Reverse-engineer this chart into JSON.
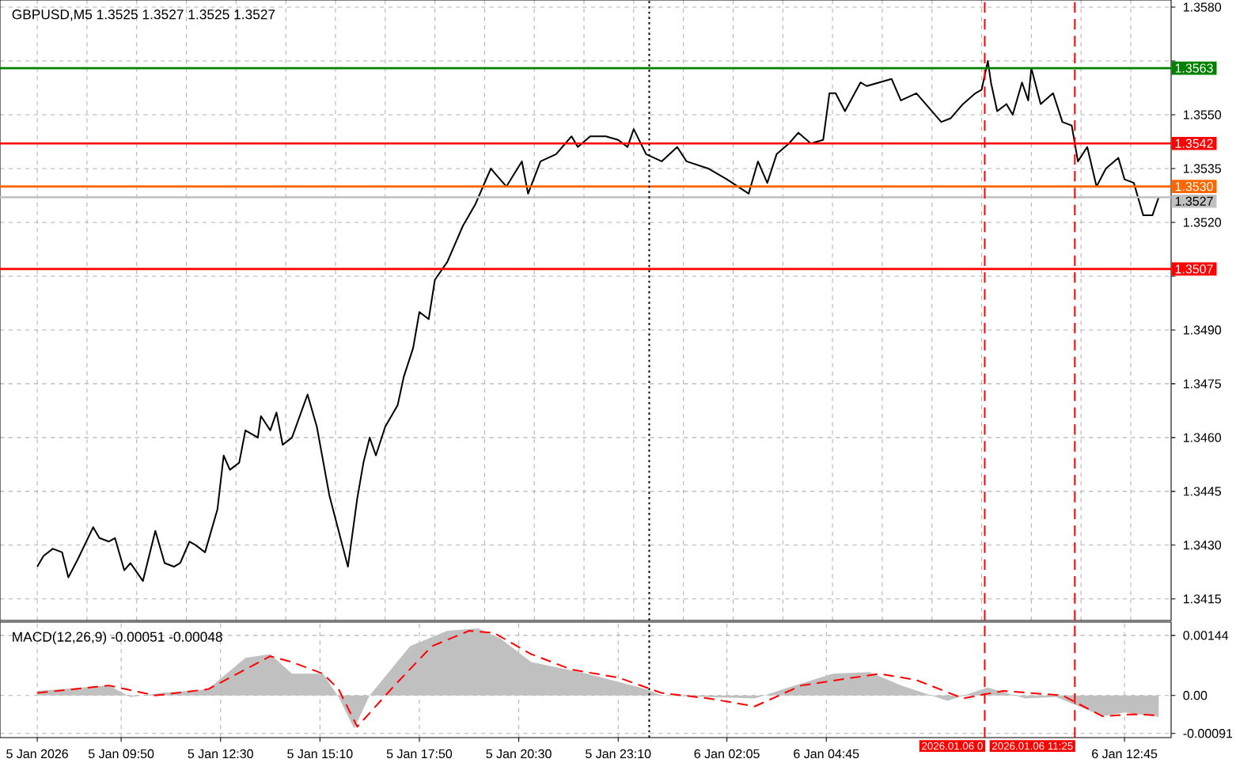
{
  "chart_data": [
    {
      "type": "line",
      "title": "GBPUSD,M5 1.3525 1.3527 1.3525 1.3527",
      "series": [
        {
          "color": "#000000",
          "x": [
            "2026-01-05T07:35",
            "2026-01-05T07:45",
            "2026-01-05T08:00",
            "2026-01-05T08:15",
            "2026-01-05T08:25",
            "2026-01-05T08:40",
            "2026-01-05T09:05",
            "2026-01-05T09:15",
            "2026-01-05T09:30",
            "2026-01-05T09:40",
            "2026-01-05T09:55",
            "2026-01-05T10:05",
            "2026-01-05T10:25",
            "2026-01-05T10:45",
            "2026-01-05T11:00",
            "2026-01-05T11:15",
            "2026-01-05T11:25",
            "2026-01-05T11:40",
            "2026-01-05T11:50",
            "2026-01-05T12:05",
            "2026-01-05T12:25",
            "2026-01-05T12:35",
            "2026-01-05T12:45",
            "2026-01-05T13:00",
            "2026-01-05T13:10",
            "2026-01-05T13:30",
            "2026-01-05T13:35",
            "2026-01-05T13:50",
            "2026-01-05T14:00",
            "2026-01-05T14:10",
            "2026-01-05T14:25",
            "2026-01-05T14:50",
            "2026-01-05T15:05",
            "2026-01-05T15:25",
            "2026-01-05T15:40",
            "2026-01-05T15:55",
            "2026-01-05T16:10",
            "2026-01-05T16:20",
            "2026-01-05T16:30",
            "2026-01-05T16:40",
            "2026-01-05T16:55",
            "2026-01-05T17:15",
            "2026-01-05T17:25",
            "2026-01-05T17:40",
            "2026-01-05T17:50",
            "2026-01-05T18:05",
            "2026-01-05T18:15",
            "2026-01-05T18:35",
            "2026-01-05T19:00",
            "2026-01-05T19:20",
            "2026-01-05T19:45",
            "2026-01-05T19:55",
            "2026-01-05T20:10",
            "2026-01-05T20:35",
            "2026-01-05T20:45",
            "2026-01-05T21:05",
            "2026-01-05T21:30",
            "2026-01-05T21:55",
            "2026-01-05T22:05",
            "2026-01-05T22:25",
            "2026-01-05T22:50",
            "2026-01-05T23:10",
            "2026-01-05T23:25",
            "2026-01-05T23:35",
            "2026-01-05T23:55",
            "2026-01-06T00:20",
            "2026-01-06T00:45",
            "2026-01-06T01:00",
            "2026-01-06T01:35",
            "2026-01-06T02:05",
            "2026-01-06T02:40",
            "2026-01-06T02:55",
            "2026-01-06T03:10",
            "2026-01-06T03:25",
            "2026-01-06T03:45",
            "2026-01-06T04:00",
            "2026-01-06T04:20",
            "2026-01-06T04:40",
            "2026-01-06T04:50",
            "2026-01-06T05:00",
            "2026-01-06T05:15",
            "2026-01-06T05:40",
            "2026-01-06T05:50",
            "2026-01-06T06:10",
            "2026-01-06T06:30",
            "2026-01-06T06:45",
            "2026-01-06T07:10",
            "2026-01-06T07:30",
            "2026-01-06T07:50",
            "2026-01-06T08:05",
            "2026-01-06T08:25",
            "2026-01-06T08:45",
            "2026-01-06T08:55",
            "2026-01-06T09:05",
            "2026-01-06T09:10",
            "2026-01-06T09:20",
            "2026-01-06T09:35",
            "2026-01-06T09:45",
            "2026-01-06T10:00",
            "2026-01-06T10:10",
            "2026-01-06T10:15",
            "2026-01-06T10:30",
            "2026-01-06T10:50",
            "2026-01-06T11:05",
            "2026-01-06T11:20",
            "2026-01-06T11:30",
            "2026-01-06T11:45",
            "2026-01-06T12:00",
            "2026-01-06T12:15",
            "2026-01-06T12:35",
            "2026-01-06T12:45",
            "2026-01-06T13:00",
            "2026-01-06T13:15",
            "2026-01-06T13:30",
            "2026-01-06T13:40"
          ],
          "values": [
            1.3424,
            1.3427,
            1.3429,
            1.3428,
            1.3421,
            1.3426,
            1.3435,
            1.3432,
            1.3431,
            1.3432,
            1.3423,
            1.3425,
            1.342,
            1.3434,
            1.3425,
            1.3424,
            1.3425,
            1.3431,
            1.343,
            1.3428,
            1.344,
            1.3455,
            1.3451,
            1.3453,
            1.3462,
            1.346,
            1.3466,
            1.3462,
            1.3467,
            1.3458,
            1.346,
            1.3472,
            1.3463,
            1.3444,
            1.3434,
            1.3424,
            1.3443,
            1.3453,
            1.346,
            1.3455,
            1.3463,
            1.3469,
            1.3477,
            1.3485,
            1.3495,
            1.3493,
            1.3504,
            1.3509,
            1.3519,
            1.3525,
            1.3535,
            1.3533,
            1.353,
            1.3537,
            1.3528,
            1.3537,
            1.3539,
            1.3544,
            1.3541,
            1.3544,
            1.3544,
            1.3543,
            1.3541,
            1.3546,
            1.3539,
            1.3537,
            1.3541,
            1.3537,
            1.3535,
            1.3532,
            1.3528,
            1.3537,
            1.3531,
            1.3539,
            1.3542,
            1.3545,
            1.3542,
            1.3543,
            1.3556,
            1.3556,
            1.3551,
            1.3559,
            1.3558,
            1.3559,
            1.356,
            1.3554,
            1.3556,
            1.3552,
            1.3548,
            1.3549,
            1.3553,
            1.3556,
            1.3557,
            1.3565,
            1.3559,
            1.3551,
            1.3553,
            1.355,
            1.3559,
            1.3554,
            1.3563,
            1.3553,
            1.3556,
            1.3548,
            1.3547,
            1.3537,
            1.3541,
            1.353,
            1.3535,
            1.3538,
            1.3532,
            1.3531,
            1.3522,
            1.3522,
            1.3527
          ]
        }
      ],
      "xlim": [
        "2026-01-05T06:35",
        "2026-01-06T14:00"
      ],
      "xticks": [
        "2026-01-05T07:35",
        "2026-01-05T08:55",
        "2026-01-05T10:15",
        "2026-01-05T11:35",
        "2026-01-05T12:55",
        "2026-01-05T14:15",
        "2026-01-05T15:35",
        "2026-01-05T16:55",
        "2026-01-05T18:15",
        "2026-01-05T19:35",
        "2026-01-05T20:55",
        "2026-01-05T22:15",
        "2026-01-05T23:35",
        "2026-01-06T00:55",
        "2026-01-06T02:15",
        "2026-01-06T03:35",
        "2026-01-06T04:55",
        "2026-01-06T06:15",
        "2026-01-06T07:35",
        "2026-01-06T08:55",
        "2026-01-06T10:15",
        "2026-01-06T11:35",
        "2026-01-06T12:55"
      ],
      "ylim": [
        1.3409,
        1.3582
      ],
      "yticks": [
        {
          "value": 1.3415,
          "label": "1.3415"
        },
        {
          "value": 1.343,
          "label": "1.3430"
        },
        {
          "value": 1.3445,
          "label": "1.3445"
        },
        {
          "value": 1.346,
          "label": "1.3460"
        },
        {
          "value": 1.3475,
          "label": "1.3475"
        },
        {
          "value": 1.349,
          "label": "1.3490"
        },
        {
          "value": 1.3505,
          "label": null
        },
        {
          "value": 1.352,
          "label": "1.3520"
        },
        {
          "value": 1.3535,
          "label": "1.3535"
        },
        {
          "value": 1.355,
          "label": "1.3550"
        },
        {
          "value": 1.3565,
          "label": null
        },
        {
          "value": 1.358,
          "label": "1.3580"
        }
      ],
      "tick_labels": "y",
      "grid": true,
      "ref_lines": [
        {
          "axis": "y",
          "value": 1.3563,
          "label": "1.3563",
          "color": "#008000"
        },
        {
          "axis": "y",
          "value": 1.3542,
          "label": "1.3542",
          "color": "#ff0000"
        },
        {
          "axis": "y",
          "value": 1.353,
          "label": "1.3530",
          "color": "#ff6600"
        },
        {
          "axis": "y",
          "value": 1.3527,
          "label": "1.3527",
          "color": "#c0c0c0"
        },
        {
          "axis": "y",
          "value": 1.3507,
          "label": "1.3507",
          "color": "#ff0000"
        },
        {
          "axis": "x",
          "value": "2026-01-06T00:00",
          "color": "#000000",
          "line_style": "dotted"
        },
        {
          "axis": "x",
          "value": "2026-01-06T09:00",
          "color": "#ff0000",
          "line_style": "dashed"
        },
        {
          "axis": "x",
          "value": "2026-01-06T11:25",
          "color": "#ff0000",
          "line_style": "dashed"
        }
      ]
    },
    {
      "type": "line",
      "title": "MACD(12,26,9) -0.00051 -0.00048",
      "series": [
        {
          "type": "area",
          "color": "#c0c0c0",
          "x": [
            "2026-01-05T07:35",
            "2026-01-05T08:15",
            "2026-01-05T09:30",
            "2026-01-05T10:05",
            "2026-01-05T10:55",
            "2026-01-05T12:10",
            "2026-01-05T13:10",
            "2026-01-05T13:50",
            "2026-01-05T14:25",
            "2026-01-05T15:15",
            "2026-01-05T15:40",
            "2026-01-05T16:05",
            "2026-01-05T16:30",
            "2026-01-05T17:35",
            "2026-01-05T18:35",
            "2026-01-05T19:25",
            "2026-01-05T20:00",
            "2026-01-05T20:50",
            "2026-01-05T22:20",
            "2026-01-05T23:55",
            "2026-01-06T00:20",
            "2026-01-06T01:35",
            "2026-01-06T02:50",
            "2026-01-06T03:55",
            "2026-01-06T04:55",
            "2026-01-06T05:55",
            "2026-01-06T06:45",
            "2026-01-06T08:00",
            "2026-01-06T09:05",
            "2026-01-06T10:05",
            "2026-01-06T10:55",
            "2026-01-06T12:10",
            "2026-01-06T12:45",
            "2026-01-06T13:40"
          ],
          "values": [
            0.00011,
            0.00015,
            0.00024,
            -4e-05,
            6e-05,
            0.00015,
            0.0009,
            0.00099,
            0.00052,
            0.00052,
            -4e-05,
            -0.00079,
            0,
            0.00118,
            0.00155,
            0.00161,
            0.00137,
            0.0008,
            0.00052,
            0.00015,
            0,
            -4e-05,
            -7e-05,
            0.00024,
            0.00052,
            0.00056,
            0.00024,
            -0.00013,
            0.00019,
            -7e-05,
            -4e-05,
            -0.0005,
            -0.00041,
            -0.00051
          ]
        },
        {
          "type": "line",
          "color": "#ff0000",
          "line_style": "dashed",
          "x": [
            "2026-01-05T07:35",
            "2026-01-05T09:30",
            "2026-01-05T10:45",
            "2026-01-05T12:10",
            "2026-01-05T13:50",
            "2026-01-05T14:25",
            "2026-01-05T15:15",
            "2026-01-05T15:40",
            "2026-01-05T16:10",
            "2026-01-05T17:10",
            "2026-01-05T18:10",
            "2026-01-05T19:10",
            "2026-01-05T19:50",
            "2026-01-05T20:50",
            "2026-01-05T21:55",
            "2026-01-05T23:10",
            "2026-01-06T00:20",
            "2026-01-06T01:35",
            "2026-01-06T02:50",
            "2026-01-06T04:05",
            "2026-01-06T06:10",
            "2026-01-06T07:10",
            "2026-01-06T08:25",
            "2026-01-06T09:30",
            "2026-01-06T11:05",
            "2026-01-06T12:10",
            "2026-01-06T13:00",
            "2026-01-06T13:40"
          ],
          "values": [
            6e-05,
            0.00024,
            0,
            0.00015,
            0.00094,
            0.0008,
            0.00052,
            0.00015,
            -0.00075,
            0.00024,
            0.00118,
            0.00155,
            0.0015,
            0.00099,
            0.00062,
            0.00043,
            6e-05,
            -7e-05,
            -0.00026,
            0.00024,
            0.00052,
            0.00037,
            -7e-05,
            0.00011,
            0,
            -0.0005,
            -0.00045,
            -0.00048
          ]
        }
      ],
      "xlim": [
        "2026-01-05T06:35",
        "2026-01-06T14:00"
      ],
      "xticks": [
        {
          "value": "2026-01-05T07:35",
          "label": "5 Jan 2026"
        },
        {
          "value": "2026-01-05T09:50",
          "label": "5 Jan 09:50"
        },
        {
          "value": "2026-01-05T12:30",
          "label": "5 Jan 12:30"
        },
        {
          "value": "2026-01-05T15:10",
          "label": "5 Jan 15:10"
        },
        {
          "value": "2026-01-05T17:50",
          "label": "5 Jan 17:50"
        },
        {
          "value": "2026-01-05T20:30",
          "label": "5 Jan 20:30"
        },
        {
          "value": "2026-01-05T23:10",
          "label": "5 Jan 23:10"
        },
        {
          "value": "2026-01-06T02:05",
          "label": "6 Jan 02:05"
        },
        {
          "value": "2026-01-06T04:45",
          "label": "6 Jan 04:45"
        },
        {
          "value": "2026-01-06T12:45",
          "label": "6 Jan 12:45"
        }
      ],
      "ylim": [
        -0.00101,
        0.00176
      ],
      "yticks": [
        {
          "value": 0.00144,
          "label": "0.00144"
        },
        {
          "value": 0,
          "label": "0.00"
        },
        {
          "value": -0.00091,
          "label": "-0.00091"
        }
      ],
      "grid": true,
      "ref_lines": [
        {
          "axis": "x",
          "value": "2026-01-06T00:00",
          "color": "#000000",
          "line_style": "dotted"
        },
        {
          "axis": "x",
          "value": "2026-01-06T09:00",
          "label": "2026.01.06 0",
          "color": "#ff0000",
          "line_style": "dashed"
        },
        {
          "axis": "x",
          "value": "2026-01-06T11:25",
          "label": "2026.01.06 11:25",
          "color": "#ff0000",
          "line_style": "dashed"
        }
      ]
    }
  ]
}
